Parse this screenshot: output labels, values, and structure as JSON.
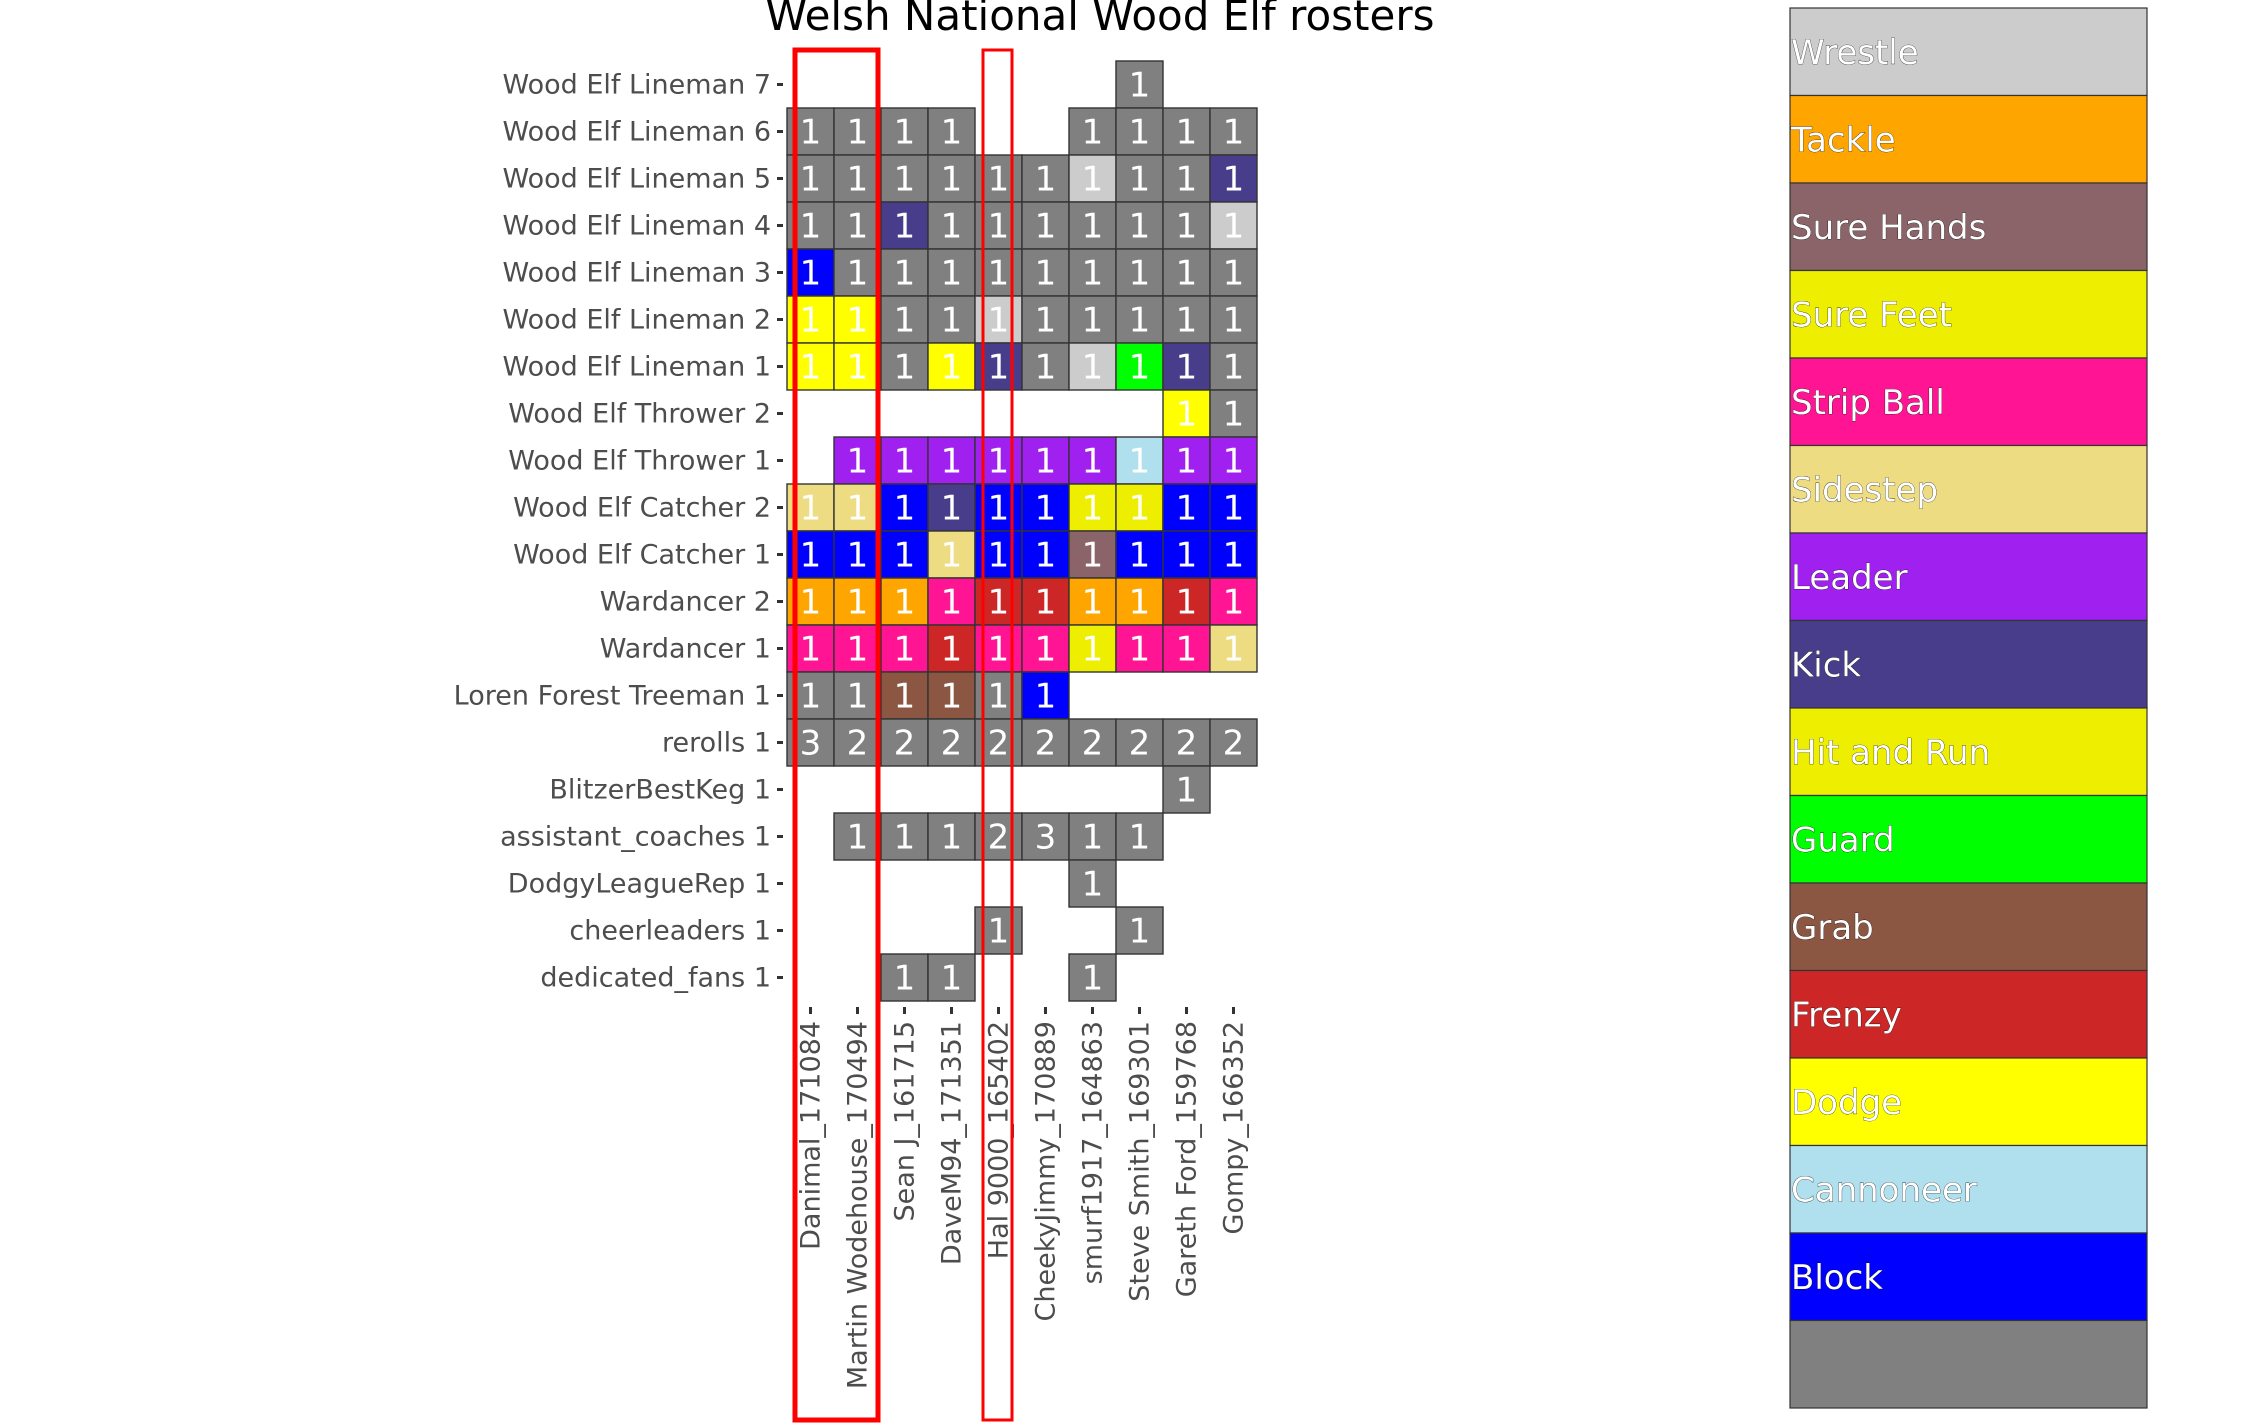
{
  "chart_data": {
    "type": "heatmap",
    "title": "Welsh National Wood Elf rosters",
    "xlabel": "",
    "ylabel": "",
    "x_categories": [
      "Danimal_171084",
      "Martin Wodehouse_170494",
      "Sean J_161715",
      "DaveM94_171351",
      "Hal 9000_165402",
      "CheekyJimmy_170889",
      "smurf1917_164863",
      "Steve Smith_169301",
      "Gareth Ford_159768",
      "Gompy_166352"
    ],
    "y_categories": [
      "Wood Elf Lineman 7",
      "Wood Elf Lineman 6",
      "Wood Elf Lineman 5",
      "Wood Elf Lineman 4",
      "Wood Elf Lineman 3",
      "Wood Elf Lineman 2",
      "Wood Elf Lineman 1",
      "Wood Elf Thrower 2",
      "Wood Elf Thrower 1",
      "Wood Elf Catcher 2",
      "Wood Elf Catcher 1",
      "Wardancer 2",
      "Wardancer 1",
      "Loren Forest Treeman 1",
      "rerolls 1",
      "BlitzerBestKeg 1",
      "assistant_coaches 1",
      "DodgyLeagueRep 1",
      "cheerleaders 1",
      "dedicated_fans 1"
    ],
    "cells": [
      [
        null,
        null,
        null,
        null,
        null,
        null,
        null,
        [
          1,
          "None"
        ],
        null,
        null
      ],
      [
        [
          1,
          "None"
        ],
        [
          1,
          "None"
        ],
        [
          1,
          "None"
        ],
        [
          1,
          "None"
        ],
        null,
        null,
        [
          1,
          "None"
        ],
        [
          1,
          "None"
        ],
        [
          1,
          "None"
        ],
        [
          1,
          "None"
        ]
      ],
      [
        [
          1,
          "None"
        ],
        [
          1,
          "None"
        ],
        [
          1,
          "None"
        ],
        [
          1,
          "None"
        ],
        [
          1,
          "None"
        ],
        [
          1,
          "None"
        ],
        [
          1,
          "Wrestle"
        ],
        [
          1,
          "None"
        ],
        [
          1,
          "None"
        ],
        [
          1,
          "Kick"
        ]
      ],
      [
        [
          1,
          "None"
        ],
        [
          1,
          "None"
        ],
        [
          1,
          "Kick"
        ],
        [
          1,
          "None"
        ],
        [
          1,
          "None"
        ],
        [
          1,
          "None"
        ],
        [
          1,
          "None"
        ],
        [
          1,
          "None"
        ],
        [
          1,
          "None"
        ],
        [
          1,
          "Wrestle"
        ]
      ],
      [
        [
          1,
          "Block"
        ],
        [
          1,
          "None"
        ],
        [
          1,
          "None"
        ],
        [
          1,
          "None"
        ],
        [
          1,
          "None"
        ],
        [
          1,
          "None"
        ],
        [
          1,
          "None"
        ],
        [
          1,
          "None"
        ],
        [
          1,
          "None"
        ],
        [
          1,
          "None"
        ]
      ],
      [
        [
          1,
          "Dodge"
        ],
        [
          1,
          "Dodge"
        ],
        [
          1,
          "None"
        ],
        [
          1,
          "None"
        ],
        [
          1,
          "Wrestle"
        ],
        [
          1,
          "None"
        ],
        [
          1,
          "None"
        ],
        [
          1,
          "None"
        ],
        [
          1,
          "None"
        ],
        [
          1,
          "None"
        ]
      ],
      [
        [
          1,
          "Dodge"
        ],
        [
          1,
          "Dodge"
        ],
        [
          1,
          "None"
        ],
        [
          1,
          "Dodge"
        ],
        [
          1,
          "Kick"
        ],
        [
          1,
          "None"
        ],
        [
          1,
          "Wrestle"
        ],
        [
          1,
          "Guard"
        ],
        [
          1,
          "Kick"
        ],
        [
          1,
          "None"
        ]
      ],
      [
        null,
        null,
        null,
        null,
        null,
        null,
        null,
        null,
        [
          1,
          "Dodge"
        ],
        [
          1,
          "None"
        ]
      ],
      [
        null,
        [
          1,
          "Leader"
        ],
        [
          1,
          "Leader"
        ],
        [
          1,
          "Leader"
        ],
        [
          1,
          "Leader"
        ],
        [
          1,
          "Leader"
        ],
        [
          1,
          "Leader"
        ],
        [
          1,
          "Cannoneer"
        ],
        [
          1,
          "Leader"
        ],
        [
          1,
          "Leader"
        ]
      ],
      [
        [
          1,
          "Sidestep"
        ],
        [
          1,
          "Sidestep"
        ],
        [
          1,
          "Block"
        ],
        [
          1,
          "Kick"
        ],
        [
          1,
          "Block"
        ],
        [
          1,
          "Block"
        ],
        [
          1,
          "Sure Feet"
        ],
        [
          1,
          "Sure Feet"
        ],
        [
          1,
          "Block"
        ],
        [
          1,
          "Block"
        ]
      ],
      [
        [
          1,
          "Block"
        ],
        [
          1,
          "Block"
        ],
        [
          1,
          "Block"
        ],
        [
          1,
          "Sidestep"
        ],
        [
          1,
          "Block"
        ],
        [
          1,
          "Block"
        ],
        [
          1,
          "Sure Hands"
        ],
        [
          1,
          "Block"
        ],
        [
          1,
          "Block"
        ],
        [
          1,
          "Block"
        ]
      ],
      [
        [
          1,
          "Tackle"
        ],
        [
          1,
          "Tackle"
        ],
        [
          1,
          "Tackle"
        ],
        [
          1,
          "Strip Ball"
        ],
        [
          1,
          "Frenzy"
        ],
        [
          1,
          "Frenzy"
        ],
        [
          1,
          "Tackle"
        ],
        [
          1,
          "Tackle"
        ],
        [
          1,
          "Frenzy"
        ],
        [
          1,
          "Strip Ball"
        ]
      ],
      [
        [
          1,
          "Strip Ball"
        ],
        [
          1,
          "Strip Ball"
        ],
        [
          1,
          "Strip Ball"
        ],
        [
          1,
          "Frenzy"
        ],
        [
          1,
          "Strip Ball"
        ],
        [
          1,
          "Strip Ball"
        ],
        [
          1,
          "Sure Feet"
        ],
        [
          1,
          "Strip Ball"
        ],
        [
          1,
          "Strip Ball"
        ],
        [
          1,
          "Sidestep"
        ]
      ],
      [
        [
          1,
          "None"
        ],
        [
          1,
          "None"
        ],
        [
          1,
          "Grab"
        ],
        [
          1,
          "Grab"
        ],
        [
          1,
          "None"
        ],
        [
          1,
          "Block"
        ],
        null,
        null,
        null,
        null
      ],
      [
        [
          3,
          "None"
        ],
        [
          2,
          "None"
        ],
        [
          2,
          "None"
        ],
        [
          2,
          "None"
        ],
        [
          2,
          "None"
        ],
        [
          2,
          "None"
        ],
        [
          2,
          "None"
        ],
        [
          2,
          "None"
        ],
        [
          2,
          "None"
        ],
        [
          2,
          "None"
        ]
      ],
      [
        null,
        null,
        null,
        null,
        null,
        null,
        null,
        null,
        [
          1,
          "None"
        ],
        null
      ],
      [
        null,
        [
          1,
          "None"
        ],
        [
          1,
          "None"
        ],
        [
          1,
          "None"
        ],
        [
          2,
          "None"
        ],
        [
          3,
          "None"
        ],
        [
          1,
          "None"
        ],
        [
          1,
          "None"
        ],
        null,
        null
      ],
      [
        null,
        null,
        null,
        null,
        null,
        null,
        [
          1,
          "None"
        ],
        null,
        null,
        null
      ],
      [
        null,
        null,
        null,
        null,
        [
          1,
          "None"
        ],
        null,
        null,
        [
          1,
          "None"
        ],
        null,
        null
      ],
      [
        null,
        null,
        [
          1,
          "None"
        ],
        [
          1,
          "None"
        ],
        null,
        null,
        [
          1,
          "None"
        ],
        null,
        null,
        null
      ]
    ],
    "legend": {
      "placement": "right",
      "entries": [
        {
          "label": "Wrestle",
          "color": "#cccccc"
        },
        {
          "label": "Tackle",
          "color": "#ffa500"
        },
        {
          "label": "Sure Hands",
          "color": "#8b6469"
        },
        {
          "label": "Sure Feet",
          "color": "#eeee00"
        },
        {
          "label": "Strip Ball",
          "color": "#ff1493"
        },
        {
          "label": "Sidestep",
          "color": "#eedc82"
        },
        {
          "label": "Leader",
          "color": "#a020f0"
        },
        {
          "label": "Kick",
          "color": "#483d8b"
        },
        {
          "label": "Hit and Run",
          "color": "#eeee00"
        },
        {
          "label": "Guard",
          "color": "#00ff00"
        },
        {
          "label": "Grab",
          "color": "#8b5742"
        },
        {
          "label": "Frenzy",
          "color": "#cd2626"
        },
        {
          "label": "Dodge",
          "color": "#ffff00"
        },
        {
          "label": "Cannoneer",
          "color": "#b0dfed"
        },
        {
          "label": "Block",
          "color": "#0000ff"
        },
        {
          "label": "",
          "color": "#808080"
        }
      ]
    },
    "none_color": "#808080",
    "highlighted_columns": [
      [
        "Danimal_171084",
        "Martin Wodehouse_170494"
      ],
      [
        "Hal 9000_165402"
      ]
    ],
    "highlight_color": "#ff0000"
  }
}
